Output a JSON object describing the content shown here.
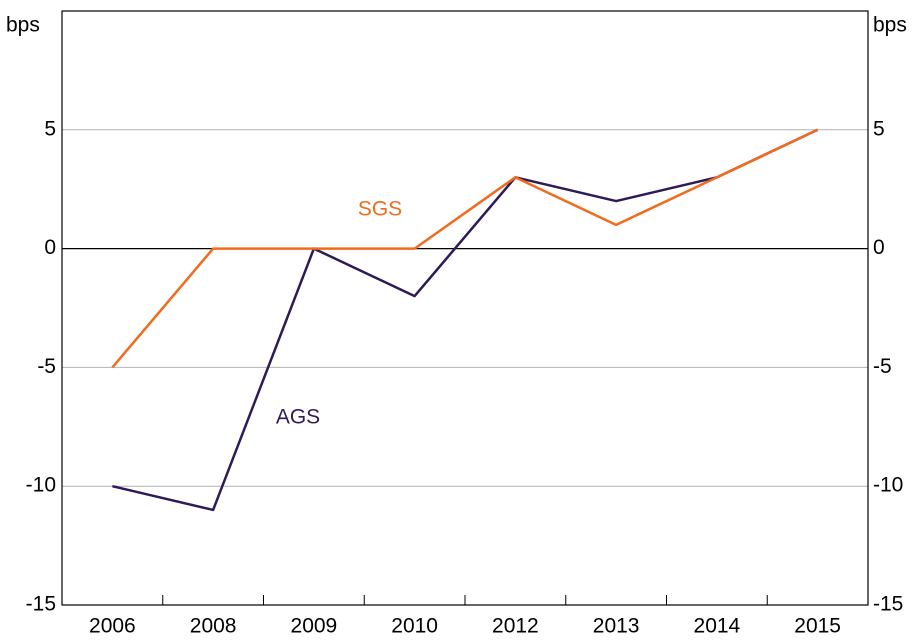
{
  "chart_data": {
    "type": "line",
    "y_label": "bps",
    "y2_label": "bps",
    "categories": [
      "2006",
      "2008",
      "2009",
      "2010",
      "2012",
      "2013",
      "2014",
      "2015"
    ],
    "series": [
      {
        "name": "AGS",
        "color": "#2e1a57",
        "values": [
          -10,
          -11,
          0,
          -2,
          3,
          2,
          3,
          5
        ]
      },
      {
        "name": "SGS",
        "color": "#f26b1d",
        "values": [
          -5,
          0,
          0,
          0,
          3,
          1,
          3,
          5
        ]
      }
    ],
    "ylim": [
      -15,
      10
    ],
    "yticks": [
      -15,
      -10,
      -5,
      0,
      5
    ],
    "y2lim": [
      -15,
      10
    ],
    "y2ticks": [
      -15,
      -10,
      -5,
      0,
      5
    ],
    "grid": true
  }
}
